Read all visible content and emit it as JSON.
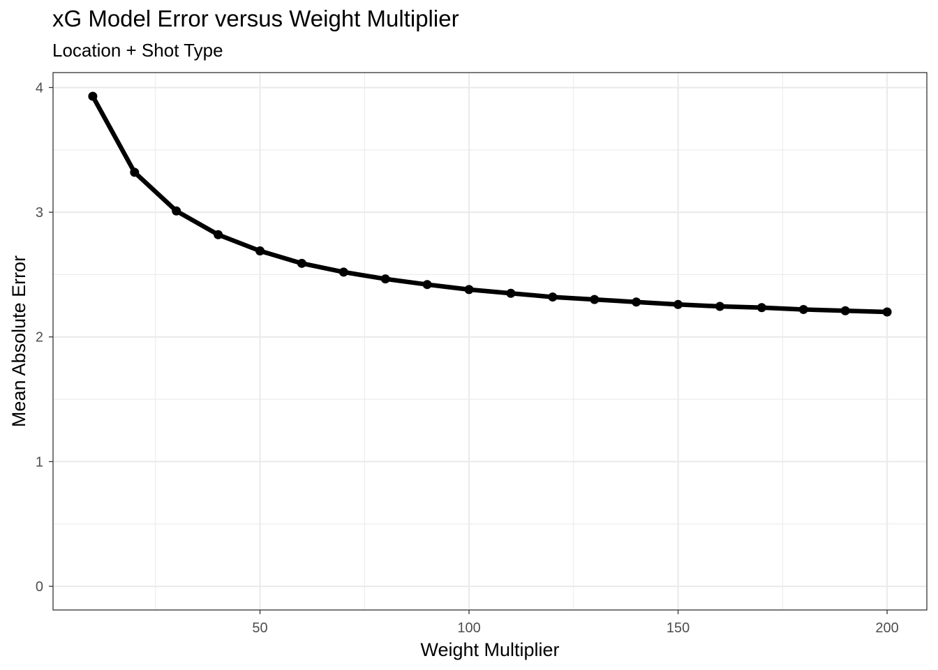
{
  "chart_data": {
    "type": "line",
    "title": "xG Model Error versus Weight Multiplier",
    "subtitle": "Location + Shot Type",
    "xlabel": "Weight Multiplier",
    "ylabel": "Mean Absolute Error",
    "xlim": [
      0.5,
      209.5
    ],
    "ylim": [
      -0.19,
      4.12
    ],
    "x_ticks": [
      50,
      100,
      150,
      200
    ],
    "x_minor_ticks": [
      25,
      75,
      125,
      175
    ],
    "y_ticks": [
      0,
      1,
      2,
      3,
      4
    ],
    "y_minor_ticks": [
      0.5,
      1.5,
      2.5,
      3.5
    ],
    "grid": true,
    "series": [
      {
        "x": [
          10,
          20,
          30,
          40,
          50,
          60,
          70,
          80,
          90,
          100,
          110,
          120,
          130,
          140,
          150,
          160,
          170,
          180,
          190,
          200
        ],
        "y": [
          3.93,
          3.32,
          3.01,
          2.82,
          2.69,
          2.59,
          2.52,
          2.465,
          2.42,
          2.38,
          2.35,
          2.32,
          2.3,
          2.28,
          2.26,
          2.245,
          2.235,
          2.22,
          2.21,
          2.2
        ]
      }
    ],
    "colors": {
      "line": "#000000",
      "grid": "#ebebeb",
      "border": "#333333"
    }
  }
}
